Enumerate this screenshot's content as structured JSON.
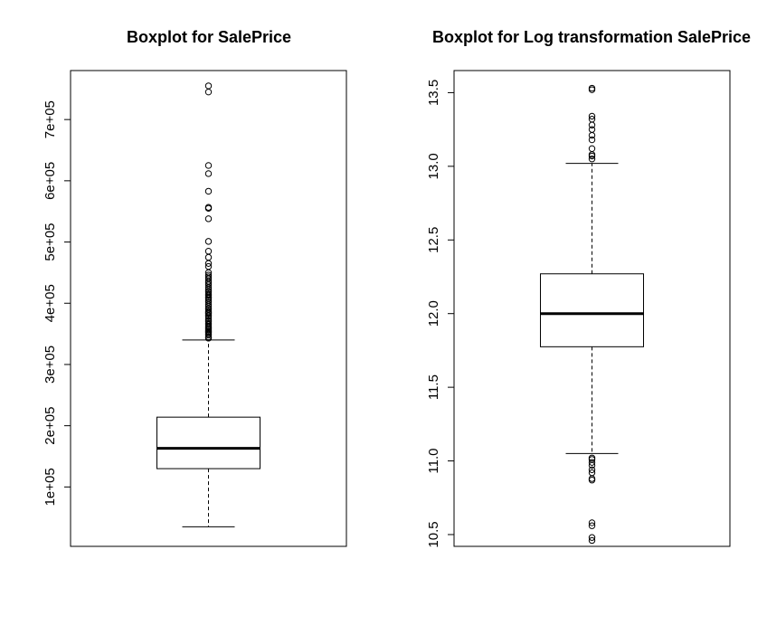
{
  "chart_data": [
    {
      "type": "boxplot",
      "title": "Boxplot for SalePrice",
      "xlabel": "",
      "ylabel": "",
      "ylim": [
        3000,
        780000
      ],
      "yticks": [
        100000,
        200000,
        300000,
        400000,
        500000,
        600000,
        700000
      ],
      "ytick_labels": [
        "1e+05",
        "2e+05",
        "3e+05",
        "4e+05",
        "5e+05",
        "6e+05",
        "7e+05"
      ],
      "box": {
        "whisker_low": 34900,
        "q1": 129900,
        "median": 163000,
        "q3": 214000,
        "whisker_high": 340000
      },
      "outliers": [
        343000,
        345000,
        348000,
        350000,
        352000,
        354000,
        356000,
        358000,
        360000,
        362000,
        365000,
        367000,
        370000,
        372000,
        375000,
        378000,
        380000,
        383000,
        385000,
        387000,
        390000,
        392000,
        395000,
        398000,
        402000,
        405000,
        408000,
        410000,
        413000,
        415000,
        418000,
        420000,
        423000,
        426000,
        430000,
        433000,
        436000,
        440000,
        443000,
        446000,
        450000,
        460000,
        465000,
        475000,
        485000,
        501000,
        538000,
        555000,
        556581,
        582933,
        611657,
        625000,
        745000,
        755000
      ]
    },
    {
      "type": "boxplot",
      "title": "Boxplot for Log transformation SalePrice",
      "xlabel": "",
      "ylabel": "",
      "ylim": [
        10.42,
        13.65
      ],
      "yticks": [
        10.5,
        11.0,
        11.5,
        12.0,
        12.5,
        13.0,
        13.5
      ],
      "ytick_labels": [
        "10.5",
        "11.0",
        "11.5",
        "12.0",
        "12.5",
        "13.0",
        "13.5"
      ],
      "box": {
        "whisker_low": 11.05,
        "q1": 11.775,
        "median": 12.0,
        "q3": 12.27,
        "whisker_high": 13.02
      },
      "outliers": [
        10.46,
        10.48,
        10.56,
        10.58,
        10.87,
        10.88,
        10.92,
        10.94,
        10.97,
        10.99,
        11.01,
        11.02,
        13.05,
        13.07,
        13.08,
        13.12,
        13.18,
        13.21,
        13.25,
        13.28,
        13.32,
        13.34,
        13.52,
        13.53
      ]
    }
  ]
}
